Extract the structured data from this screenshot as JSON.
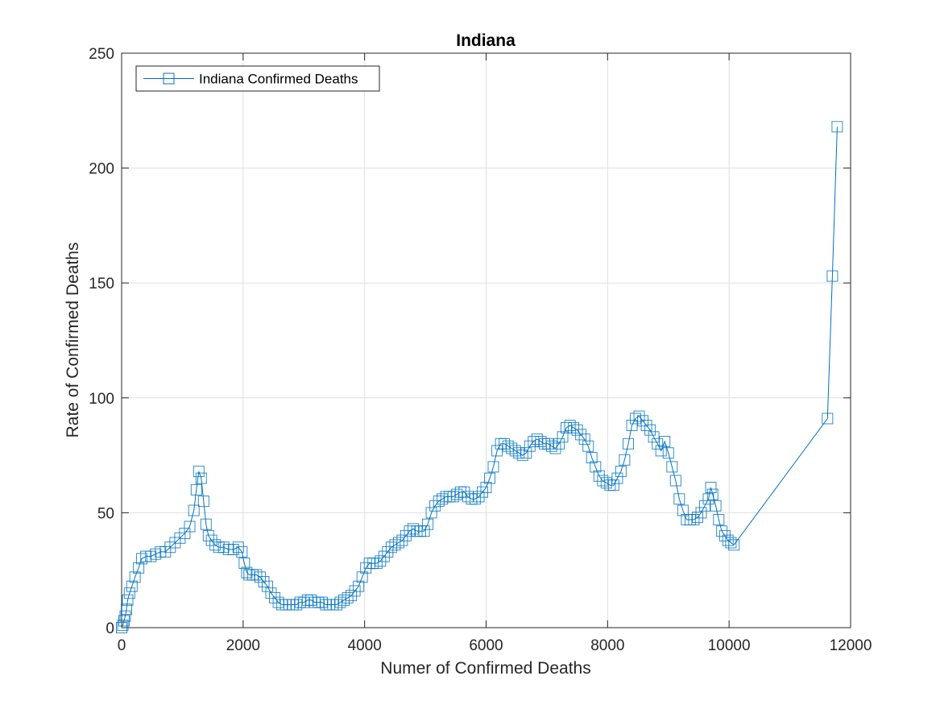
{
  "chart_data": {
    "type": "line",
    "title": "Indiana",
    "xlabel": "Numer of Confirmed Deaths",
    "ylabel": "Rate of Confirmed Deaths",
    "xlim": [
      0,
      12000
    ],
    "ylim": [
      0,
      250
    ],
    "xticks": [
      0,
      2000,
      4000,
      6000,
      8000,
      10000,
      12000
    ],
    "yticks": [
      0,
      50,
      100,
      150,
      200,
      250
    ],
    "grid": true,
    "legend_position": "top-left",
    "marker": "square",
    "color": "#0072BD",
    "series": [
      {
        "name": "Indiana Confirmed Deaths",
        "points": [
          [
            0,
            0
          ],
          [
            20,
            1
          ],
          [
            40,
            3
          ],
          [
            60,
            5
          ],
          [
            80,
            8
          ],
          [
            100,
            12
          ],
          [
            130,
            15
          ],
          [
            170,
            18
          ],
          [
            220,
            22
          ],
          [
            280,
            26
          ],
          [
            330,
            30
          ],
          [
            400,
            31
          ],
          [
            480,
            31
          ],
          [
            560,
            32
          ],
          [
            640,
            33
          ],
          [
            720,
            33
          ],
          [
            800,
            35
          ],
          [
            880,
            37
          ],
          [
            960,
            39
          ],
          [
            1040,
            41
          ],
          [
            1120,
            44
          ],
          [
            1190,
            51
          ],
          [
            1230,
            60
          ],
          [
            1270,
            68
          ],
          [
            1310,
            65
          ],
          [
            1350,
            55
          ],
          [
            1390,
            45
          ],
          [
            1430,
            40
          ],
          [
            1480,
            38
          ],
          [
            1540,
            36
          ],
          [
            1600,
            35
          ],
          [
            1680,
            35
          ],
          [
            1760,
            34
          ],
          [
            1840,
            34
          ],
          [
            1920,
            35
          ],
          [
            1980,
            33
          ],
          [
            2020,
            28
          ],
          [
            2060,
            24
          ],
          [
            2100,
            23
          ],
          [
            2160,
            23
          ],
          [
            2220,
            23
          ],
          [
            2280,
            22
          ],
          [
            2340,
            20
          ],
          [
            2400,
            18
          ],
          [
            2460,
            15
          ],
          [
            2520,
            13
          ],
          [
            2580,
            11
          ],
          [
            2640,
            10
          ],
          [
            2700,
            10
          ],
          [
            2760,
            10
          ],
          [
            2820,
            10
          ],
          [
            2880,
            10
          ],
          [
            2940,
            11
          ],
          [
            3000,
            11
          ],
          [
            3060,
            12
          ],
          [
            3120,
            12
          ],
          [
            3180,
            11
          ],
          [
            3240,
            11
          ],
          [
            3300,
            11
          ],
          [
            3360,
            10
          ],
          [
            3420,
            10
          ],
          [
            3480,
            10
          ],
          [
            3540,
            10
          ],
          [
            3600,
            11
          ],
          [
            3660,
            12
          ],
          [
            3720,
            13
          ],
          [
            3780,
            14
          ],
          [
            3840,
            16
          ],
          [
            3900,
            18
          ],
          [
            3960,
            22
          ],
          [
            4020,
            26
          ],
          [
            4080,
            28
          ],
          [
            4140,
            28
          ],
          [
            4200,
            28
          ],
          [
            4260,
            29
          ],
          [
            4320,
            31
          ],
          [
            4380,
            33
          ],
          [
            4440,
            35
          ],
          [
            4500,
            36
          ],
          [
            4560,
            37
          ],
          [
            4620,
            38
          ],
          [
            4680,
            40
          ],
          [
            4740,
            42
          ],
          [
            4800,
            43
          ],
          [
            4860,
            42
          ],
          [
            4920,
            42
          ],
          [
            4980,
            42
          ],
          [
            5040,
            45
          ],
          [
            5100,
            50
          ],
          [
            5160,
            53
          ],
          [
            5220,
            55
          ],
          [
            5280,
            56
          ],
          [
            5340,
            57
          ],
          [
            5400,
            57
          ],
          [
            5460,
            57
          ],
          [
            5520,
            58
          ],
          [
            5580,
            59
          ],
          [
            5640,
            59
          ],
          [
            5700,
            57
          ],
          [
            5760,
            56
          ],
          [
            5820,
            56
          ],
          [
            5880,
            57
          ],
          [
            5940,
            59
          ],
          [
            6000,
            61
          ],
          [
            6060,
            65
          ],
          [
            6120,
            70
          ],
          [
            6180,
            77
          ],
          [
            6240,
            80
          ],
          [
            6300,
            80
          ],
          [
            6360,
            79
          ],
          [
            6420,
            78
          ],
          [
            6480,
            77
          ],
          [
            6540,
            76
          ],
          [
            6600,
            75
          ],
          [
            6660,
            76
          ],
          [
            6720,
            79
          ],
          [
            6780,
            81
          ],
          [
            6840,
            82
          ],
          [
            6900,
            81
          ],
          [
            6960,
            80
          ],
          [
            7020,
            80
          ],
          [
            7080,
            79
          ],
          [
            7140,
            78
          ],
          [
            7200,
            80
          ],
          [
            7260,
            83
          ],
          [
            7320,
            87
          ],
          [
            7380,
            88
          ],
          [
            7440,
            87
          ],
          [
            7500,
            86
          ],
          [
            7560,
            84
          ],
          [
            7620,
            82
          ],
          [
            7680,
            79
          ],
          [
            7740,
            74
          ],
          [
            7800,
            70
          ],
          [
            7860,
            66
          ],
          [
            7920,
            64
          ],
          [
            7980,
            63
          ],
          [
            8040,
            62
          ],
          [
            8100,
            62
          ],
          [
            8160,
            65
          ],
          [
            8220,
            68
          ],
          [
            8280,
            73
          ],
          [
            8340,
            80
          ],
          [
            8400,
            88
          ],
          [
            8460,
            91
          ],
          [
            8520,
            92
          ],
          [
            8580,
            90
          ],
          [
            8640,
            88
          ],
          [
            8700,
            86
          ],
          [
            8760,
            83
          ],
          [
            8820,
            80
          ],
          [
            8880,
            77
          ],
          [
            8940,
            81
          ],
          [
            9000,
            76
          ],
          [
            9060,
            70
          ],
          [
            9120,
            64
          ],
          [
            9180,
            56
          ],
          [
            9240,
            51
          ],
          [
            9300,
            47
          ],
          [
            9360,
            47
          ],
          [
            9420,
            47
          ],
          [
            9480,
            48
          ],
          [
            9540,
            50
          ],
          [
            9600,
            53
          ],
          [
            9660,
            56
          ],
          [
            9700,
            61
          ],
          [
            9730,
            58
          ],
          [
            9780,
            53
          ],
          [
            9830,
            47
          ],
          [
            9880,
            42
          ],
          [
            9930,
            40
          ],
          [
            9980,
            38
          ],
          [
            10030,
            37
          ],
          [
            10080,
            36
          ],
          [
            11620,
            91
          ],
          [
            11700,
            153
          ],
          [
            11780,
            218
          ]
        ]
      }
    ]
  }
}
